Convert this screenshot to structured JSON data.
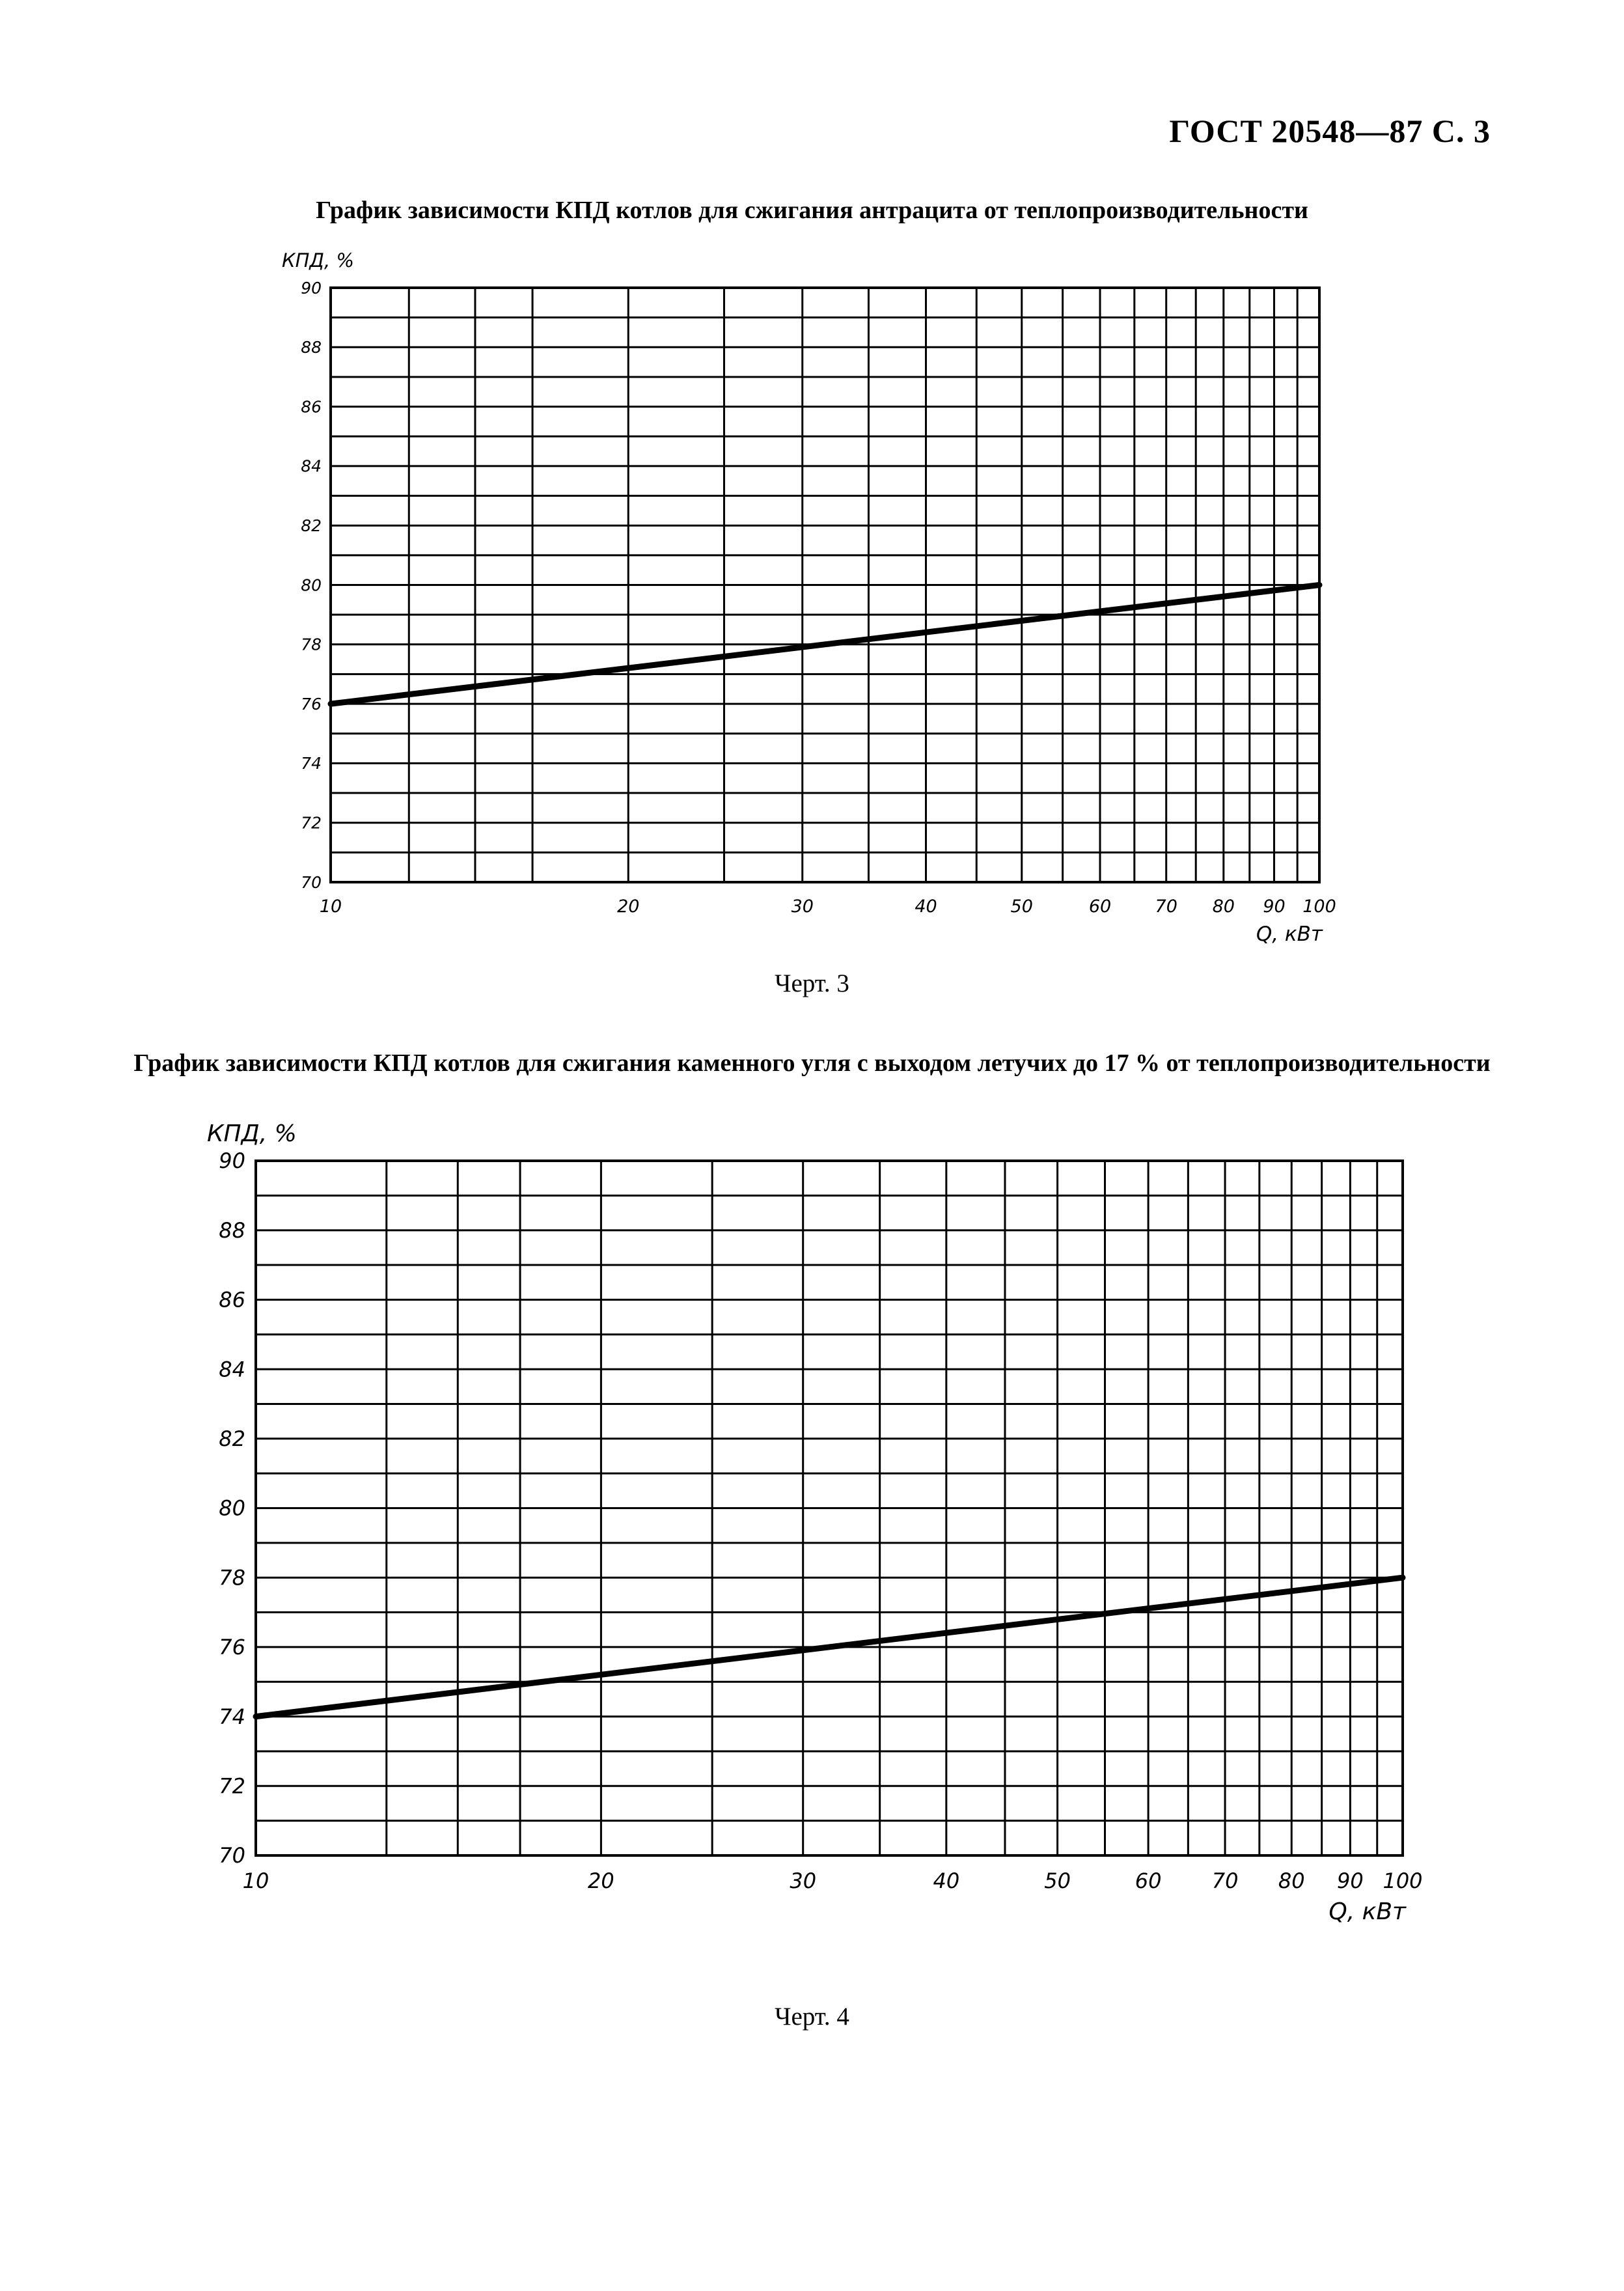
{
  "header": {
    "doc_ref": "ГОСТ 20548—87 С. 3"
  },
  "chart_data": [
    {
      "type": "line",
      "title": "График зависимости КПД котлов для сжигания антрацита от теплопроизводительности",
      "caption": "Черт. 3",
      "xlabel": "Q, кВт",
      "ylabel": "КПД, %",
      "x_scale": "log",
      "xlim": [
        10,
        100
      ],
      "ylim": [
        70,
        90
      ],
      "x_ticks": [
        "10",
        "20",
        "30",
        "40",
        "50",
        "60",
        "70",
        "80",
        "90",
        "100"
      ],
      "y_ticks": [
        "90",
        "88",
        "86",
        "84",
        "82",
        "80",
        "78",
        "76",
        "74",
        "72",
        "70"
      ],
      "grid": true,
      "series": [
        {
          "x": [
            10,
            100
          ],
          "y": [
            76,
            80
          ]
        }
      ]
    },
    {
      "type": "line",
      "title": "График зависимости КПД котлов для сжигания каменного угля с выходом летучих до 17 % от теплопроизводительности",
      "caption": "Черт. 4",
      "xlabel": "Q, кВт",
      "ylabel": "КПД, %",
      "x_scale": "log",
      "xlim": [
        10,
        100
      ],
      "ylim": [
        70,
        90
      ],
      "x_ticks": [
        "10",
        "20",
        "30",
        "40",
        "50",
        "60",
        "70",
        "80",
        "90",
        "100"
      ],
      "y_ticks": [
        "90",
        "88",
        "86",
        "84",
        "82",
        "80",
        "78",
        "76",
        "74",
        "72",
        "70"
      ],
      "grid": true,
      "series": [
        {
          "x": [
            10,
            100
          ],
          "y": [
            74,
            78
          ]
        }
      ]
    }
  ]
}
